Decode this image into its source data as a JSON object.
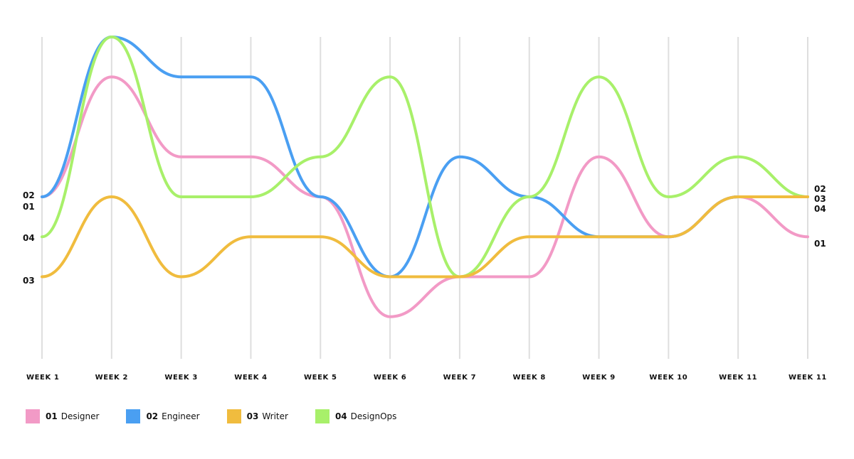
{
  "chart_data": {
    "type": "line",
    "title": "",
    "xlabel": "",
    "ylabel": "",
    "categories": [
      "WEEK 1",
      "WEEK 2",
      "WEEK 3",
      "WEEK 4",
      "WEEK 5",
      "WEEK 6",
      "WEEK 7",
      "WEEK 8",
      "WEEK 9",
      "WEEK 10",
      "WEEK 11",
      "WEEK 11"
    ],
    "ylim": [
      0,
      8
    ],
    "grid": "vertical",
    "legend_position": "bottom-left",
    "series": [
      {
        "id": "01",
        "name": "Designer",
        "color": "#f29ac6",
        "values": [
          4,
          7,
          5,
          5,
          4,
          1,
          2,
          2,
          5,
          3,
          4,
          3
        ]
      },
      {
        "id": "02",
        "name": "Engineer",
        "color": "#4a9ff2",
        "values": [
          4,
          8,
          7,
          7,
          4,
          2,
          5,
          4,
          3,
          3,
          4,
          4
        ]
      },
      {
        "id": "03",
        "name": "Writer",
        "color": "#f0bc3e",
        "values": [
          2,
          4,
          2,
          3,
          3,
          2,
          2,
          3,
          3,
          3,
          4,
          4
        ]
      },
      {
        "id": "04",
        "name": "DesignOps",
        "color": "#a8f06a",
        "values": [
          3,
          8,
          4,
          4,
          5,
          7,
          2,
          4,
          7,
          4,
          5,
          4
        ]
      }
    ],
    "start_labels": [
      "02",
      "01",
      "04",
      "03"
    ],
    "end_labels": [
      "02",
      "03",
      "04",
      "01"
    ]
  }
}
